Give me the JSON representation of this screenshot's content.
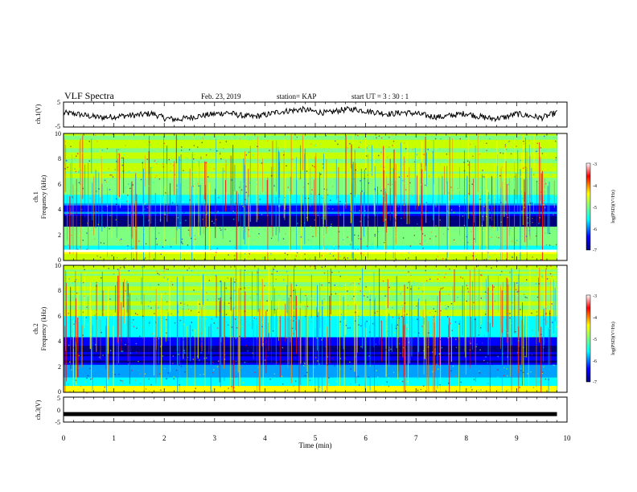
{
  "header": {
    "title": "VLF Spectra",
    "date": "Feb. 23, 2019",
    "station": "station= KAP",
    "start": "start  UT =  3 : 30 : 1"
  },
  "chart_data": [
    {
      "type": "line",
      "panel": "ch1-waveform",
      "ylabel": "ch.1(V)",
      "ylim": [
        -5,
        5
      ],
      "xlim": [
        0,
        10
      ],
      "yticks": [
        "5",
        "-5"
      ],
      "color": "#000000",
      "series": [
        {
          "x": [
            0.0,
            0.25,
            0.5,
            0.75,
            1.0,
            1.25,
            1.5,
            1.75,
            2.0,
            2.25,
            2.5,
            2.75,
            3.0,
            3.25,
            3.5,
            3.75,
            4.0,
            4.25,
            4.5,
            4.75,
            5.0,
            5.25,
            5.5,
            5.75,
            6.0,
            6.25,
            6.5,
            6.75,
            7.0,
            7.25,
            7.5,
            7.75,
            8.0,
            8.25,
            8.5,
            8.75,
            9.0,
            9.25,
            9.5,
            9.8
          ],
          "y": [
            0.6,
            0.3,
            -0.6,
            -1.2,
            -0.8,
            -0.4,
            -0.2,
            0.5,
            -1.4,
            -2.0,
            -1.2,
            -0.4,
            0.2,
            0.8,
            -0.3,
            -0.9,
            -0.2,
            1.0,
            1.6,
            2.0,
            1.2,
            0.6,
            1.8,
            2.2,
            1.5,
            0.8,
            0.2,
            0.9,
            0.4,
            -0.6,
            -1.0,
            -0.2,
            0.5,
            -0.8,
            -1.6,
            -1.2,
            0.3,
            -0.5,
            -1.3,
            0.8
          ]
        }
      ]
    },
    {
      "type": "heatmap",
      "panel": "ch1-spectrogram",
      "ylabel": "ch.1\nFrequency (kHz)",
      "ylabel_line1": "ch.1",
      "ylabel_line2": "Frequency (kHz)",
      "ylim": [
        0,
        10
      ],
      "xlim": [
        0,
        10
      ],
      "yticks": [
        "0",
        "2",
        "4",
        "6",
        "8",
        "10"
      ],
      "colorbar": {
        "label": "log(PSD)(V²/Hz)",
        "range": [
          -7,
          -3
        ],
        "ticks": [
          "-3",
          "-4",
          "-5",
          "-6",
          "-7"
        ]
      },
      "bands_note": "dark blue band near 3 kHz, white gap near 0.8 kHz, red speckle above 6 kHz",
      "data_end_min": 9.8
    },
    {
      "type": "heatmap",
      "panel": "ch2-spectrogram",
      "ylabel_line1": "ch.2",
      "ylabel_line2": "Frequency (kHz)",
      "ylim": [
        0,
        10
      ],
      "xlim": [
        0,
        10
      ],
      "yticks": [
        "0",
        "2",
        "4",
        "6",
        "8",
        "10"
      ],
      "colorbar": {
        "label": "log(PSD)(V²/Hz)",
        "range": [
          -7,
          -3
        ],
        "ticks": [
          "-3",
          "-4",
          "-5",
          "-6",
          "-7"
        ]
      },
      "bands_note": "dark blue bands between 2 and 4 kHz",
      "data_end_min": 9.8
    },
    {
      "type": "line",
      "panel": "ch3-waveform",
      "ylabel": "ch.3(V)",
      "ylim": [
        -5,
        5
      ],
      "xlim": [
        0,
        10
      ],
      "yticks": [
        "5",
        "0",
        "-5"
      ],
      "series": [
        {
          "x": [
            0,
            9.8
          ],
          "y": [
            -1.8,
            -1.8
          ]
        }
      ]
    }
  ],
  "xaxis": {
    "label": "Time (min)",
    "ticks": [
      "0",
      "1",
      "2",
      "3",
      "4",
      "5",
      "6",
      "7",
      "8",
      "9",
      "10"
    ]
  },
  "colors": {
    "scale": [
      "#00007f",
      "#0000ff",
      "#00a0ff",
      "#00ffff",
      "#7fff7f",
      "#c8ff00",
      "#ffff00",
      "#ff8000",
      "#ff0000",
      "#7f0000"
    ]
  }
}
